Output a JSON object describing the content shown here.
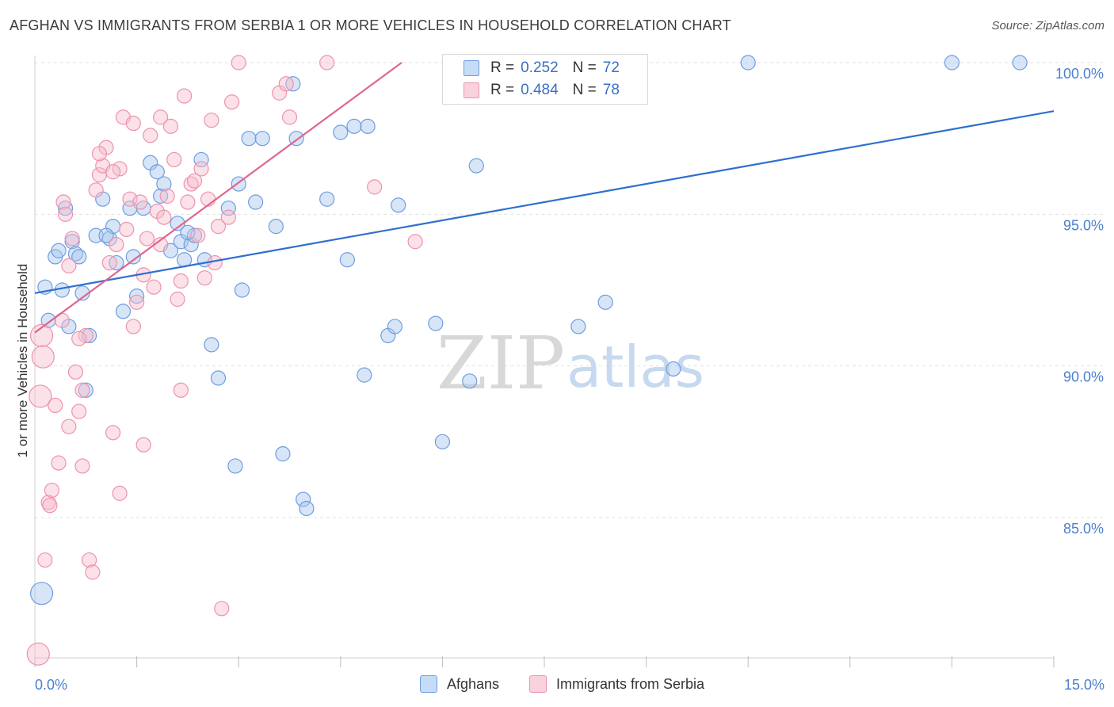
{
  "header": {
    "title": "AFGHAN VS IMMIGRANTS FROM SERBIA 1 OR MORE VEHICLES IN HOUSEHOLD CORRELATION CHART",
    "source": "Source: ZipAtlas.com"
  },
  "legend": {
    "series1": {
      "r_label": "R =",
      "r_value": "0.252",
      "n_label": "N =",
      "n_value": "72"
    },
    "series2": {
      "r_label": "R =",
      "r_value": "0.484",
      "n_label": "N =",
      "n_value": "78"
    }
  },
  "bottom_legend": {
    "series1": "Afghans",
    "series2": "Immigrants from Serbia"
  },
  "watermark": {
    "zip": "ZIP",
    "atlas": "atlas"
  },
  "colors": {
    "blue_fill": "#a9c6ee",
    "blue_stroke": "#6d9ee0",
    "blue_line": "#2f6fcf",
    "pink_fill": "#f6bccd",
    "pink_stroke": "#ec93ae",
    "pink_line": "#e0668f",
    "axis_text": "#4a7fcf",
    "grid": "#e2e2e2"
  },
  "chart_data": {
    "type": "scatter",
    "title": "AFGHAN VS IMMIGRANTS FROM SERBIA 1 OR MORE VEHICLES IN HOUSEHOLD CORRELATION CHART",
    "xlabel": "",
    "ylabel": "1 or more Vehicles in Household",
    "xlim": [
      0,
      15
    ],
    "ylim": [
      80.5,
      100.8
    ],
    "x_tick_labels": [
      {
        "value": 0,
        "label": "0.0%"
      },
      {
        "value": 15,
        "label": "15.0%"
      }
    ],
    "y_ticks": [
      {
        "value": 100,
        "label": "100.0%"
      },
      {
        "value": 95,
        "label": "95.0%"
      },
      {
        "value": 90,
        "label": "90.0%"
      },
      {
        "value": 85,
        "label": "85.0%"
      }
    ],
    "series": [
      {
        "name": "Afghans",
        "color": "#6d9ee0",
        "r": 0.252,
        "n": 72,
        "trendline": {
          "x": [
            0,
            15
          ],
          "y": [
            92.4,
            98.4
          ]
        },
        "points": [
          [
            0.1,
            82.5
          ],
          [
            0.15,
            92.6
          ],
          [
            0.2,
            91.5
          ],
          [
            0.3,
            93.6
          ],
          [
            0.35,
            93.8
          ],
          [
            0.4,
            92.5
          ],
          [
            0.45,
            95.2
          ],
          [
            0.5,
            91.3
          ],
          [
            0.55,
            94.1
          ],
          [
            0.6,
            93.7
          ],
          [
            0.7,
            92.4
          ],
          [
            0.75,
            89.2
          ],
          [
            0.8,
            91.0
          ],
          [
            0.9,
            94.3
          ],
          [
            1.0,
            95.5
          ],
          [
            1.1,
            94.2
          ],
          [
            1.15,
            94.6
          ],
          [
            1.2,
            93.4
          ],
          [
            1.3,
            91.8
          ],
          [
            1.4,
            95.2
          ],
          [
            1.45,
            93.6
          ],
          [
            1.5,
            92.3
          ],
          [
            1.6,
            95.2
          ],
          [
            1.7,
            96.7
          ],
          [
            1.8,
            96.4
          ],
          [
            1.85,
            95.6
          ],
          [
            1.9,
            96.0
          ],
          [
            2.0,
            93.8
          ],
          [
            2.1,
            94.7
          ],
          [
            2.15,
            94.1
          ],
          [
            2.2,
            93.5
          ],
          [
            2.3,
            94.0
          ],
          [
            2.35,
            94.3
          ],
          [
            2.45,
            96.8
          ],
          [
            2.5,
            93.5
          ],
          [
            2.6,
            90.7
          ],
          [
            2.7,
            89.6
          ],
          [
            2.85,
            95.2
          ],
          [
            2.95,
            86.7
          ],
          [
            3.0,
            96.0
          ],
          [
            3.05,
            92.5
          ],
          [
            3.15,
            97.5
          ],
          [
            3.25,
            95.4
          ],
          [
            3.35,
            97.5
          ],
          [
            3.55,
            94.6
          ],
          [
            3.65,
            87.1
          ],
          [
            3.8,
            99.3
          ],
          [
            3.85,
            97.5
          ],
          [
            3.95,
            85.6
          ],
          [
            4.0,
            85.3
          ],
          [
            4.3,
            95.5
          ],
          [
            4.5,
            97.7
          ],
          [
            4.6,
            93.5
          ],
          [
            4.7,
            97.9
          ],
          [
            4.85,
            89.7
          ],
          [
            5.2,
            91.0
          ],
          [
            5.3,
            91.3
          ],
          [
            5.35,
            95.3
          ],
          [
            5.9,
            91.4
          ],
          [
            6.0,
            87.5
          ],
          [
            6.4,
            89.5
          ],
          [
            6.5,
            96.6
          ],
          [
            8.0,
            91.3
          ],
          [
            8.4,
            92.1
          ],
          [
            9.4,
            89.9
          ],
          [
            10.5,
            100.0
          ],
          [
            13.5,
            100.0
          ],
          [
            14.5,
            100.0
          ],
          [
            1.05,
            94.3
          ],
          [
            2.25,
            94.4
          ],
          [
            0.65,
            93.6
          ],
          [
            4.9,
            97.9
          ]
        ]
      },
      {
        "name": "Immigrants from Serbia",
        "color": "#ec93ae",
        "r": 0.484,
        "n": 78,
        "trendline": {
          "x": [
            0,
            5.4
          ],
          "y": [
            91.1,
            100.0
          ]
        },
        "points": [
          [
            0.05,
            80.5
          ],
          [
            0.08,
            89.0
          ],
          [
            0.1,
            91.0
          ],
          [
            0.12,
            90.3
          ],
          [
            0.15,
            83.6
          ],
          [
            0.2,
            85.5
          ],
          [
            0.22,
            85.4
          ],
          [
            0.25,
            85.9
          ],
          [
            0.3,
            88.7
          ],
          [
            0.35,
            86.8
          ],
          [
            0.4,
            91.5
          ],
          [
            0.42,
            95.4
          ],
          [
            0.45,
            95.0
          ],
          [
            0.5,
            93.3
          ],
          [
            0.55,
            94.2
          ],
          [
            0.6,
            89.8
          ],
          [
            0.65,
            88.5
          ],
          [
            0.7,
            89.2
          ],
          [
            0.75,
            91.0
          ],
          [
            0.8,
            83.6
          ],
          [
            0.85,
            83.2
          ],
          [
            0.9,
            95.8
          ],
          [
            0.95,
            96.3
          ],
          [
            1.0,
            96.6
          ],
          [
            1.05,
            97.2
          ],
          [
            1.1,
            93.4
          ],
          [
            1.15,
            87.8
          ],
          [
            1.2,
            94.0
          ],
          [
            1.25,
            96.5
          ],
          [
            1.3,
            98.2
          ],
          [
            1.35,
            94.5
          ],
          [
            1.4,
            95.5
          ],
          [
            1.45,
            98.0
          ],
          [
            1.5,
            92.1
          ],
          [
            1.55,
            95.4
          ],
          [
            1.6,
            87.4
          ],
          [
            1.65,
            94.2
          ],
          [
            1.7,
            97.6
          ],
          [
            1.75,
            92.6
          ],
          [
            1.8,
            95.1
          ],
          [
            1.85,
            94.0
          ],
          [
            1.9,
            94.9
          ],
          [
            1.95,
            95.6
          ],
          [
            2.0,
            97.9
          ],
          [
            2.05,
            96.8
          ],
          [
            2.1,
            92.2
          ],
          [
            2.15,
            89.2
          ],
          [
            2.2,
            98.9
          ],
          [
            2.25,
            95.4
          ],
          [
            2.3,
            96.0
          ],
          [
            2.4,
            94.3
          ],
          [
            2.45,
            96.5
          ],
          [
            2.5,
            92.9
          ],
          [
            2.55,
            95.5
          ],
          [
            2.6,
            98.1
          ],
          [
            2.65,
            93.4
          ],
          [
            2.7,
            94.6
          ],
          [
            2.75,
            82.0
          ],
          [
            2.85,
            94.9
          ],
          [
            2.9,
            98.7
          ],
          [
            3.0,
            100.0
          ],
          [
            3.6,
            99.0
          ],
          [
            3.7,
            99.3
          ],
          [
            3.75,
            98.2
          ],
          [
            4.3,
            100.0
          ],
          [
            5.0,
            95.9
          ],
          [
            5.6,
            94.1
          ],
          [
            1.25,
            85.8
          ],
          [
            0.7,
            86.7
          ],
          [
            0.5,
            88.0
          ],
          [
            1.45,
            91.3
          ],
          [
            2.35,
            96.1
          ],
          [
            0.95,
            97.0
          ],
          [
            1.15,
            96.4
          ],
          [
            1.85,
            98.2
          ],
          [
            0.65,
            90.9
          ],
          [
            1.6,
            93.0
          ],
          [
            2.15,
            92.8
          ]
        ]
      }
    ]
  }
}
